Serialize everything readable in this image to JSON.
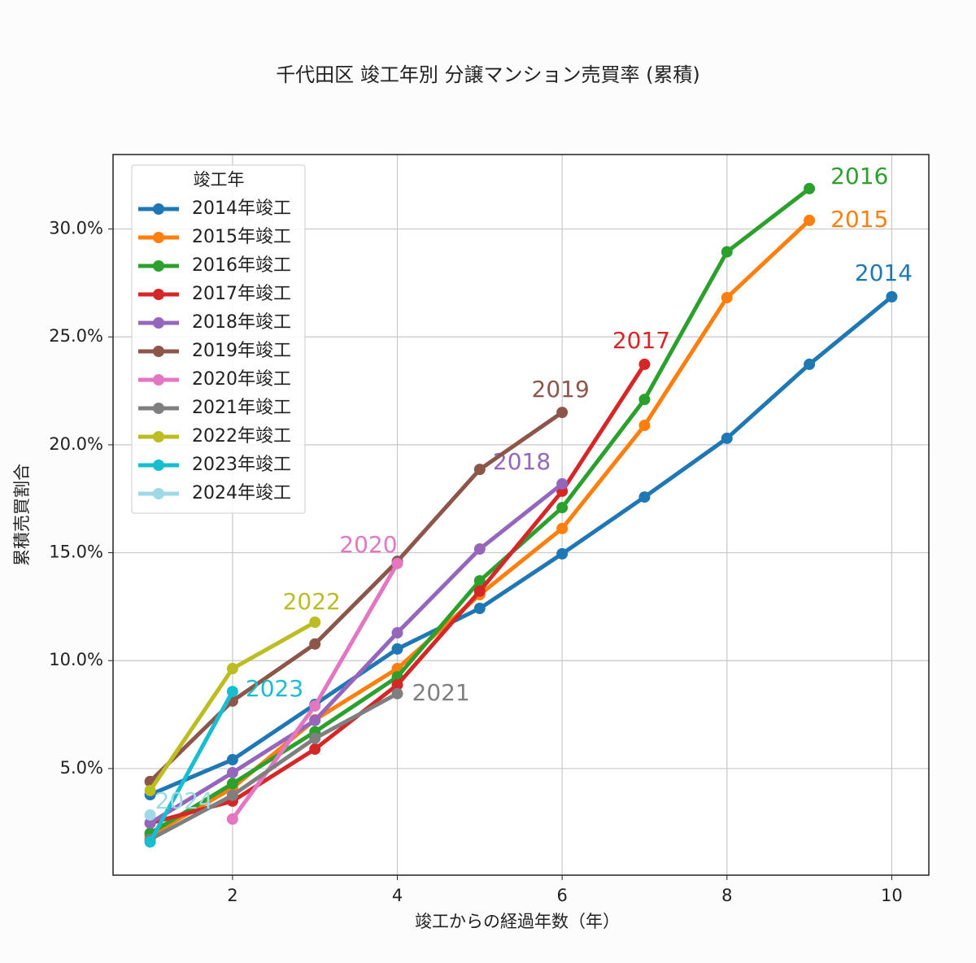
{
  "chart_data": {
    "type": "line",
    "title": "千代田区 竣工年別 分譲マンション売買率 (累積)",
    "x_label": "竣工からの経過年数（年）",
    "y_label": "累積売買割合",
    "legend_title": "竣工年",
    "legend_position": "upper left",
    "grid": true,
    "x": [
      1,
      2,
      3,
      4,
      5,
      6,
      7,
      8,
      9,
      10
    ],
    "xlim": [
      0.55,
      10.45
    ],
    "xticks": [
      2,
      4,
      6,
      8,
      10
    ],
    "ylim": [
      0.06,
      33.45
    ],
    "yticks": [
      {
        "value": 5,
        "label": "5.0%"
      },
      {
        "value": 10,
        "label": "10.0%"
      },
      {
        "value": 15,
        "label": "15.0%"
      },
      {
        "value": 20,
        "label": "20.0%"
      },
      {
        "value": 25,
        "label": "25.0%"
      },
      {
        "value": 30,
        "label": "30.0%"
      }
    ],
    "series": [
      {
        "name": "2014年竣工",
        "end_label": "2014",
        "color": "#1f77b4",
        "values": [
          3.79,
          5.41,
          7.97,
          10.54,
          12.42,
          14.95,
          17.58,
          20.3,
          23.73,
          26.86
        ]
      },
      {
        "name": "2015年竣工",
        "end_label": "2015",
        "color": "#ff7f0e",
        "values": [
          1.9,
          4.1,
          7.26,
          9.63,
          13.06,
          16.12,
          20.9,
          26.82,
          30.4,
          null
        ]
      },
      {
        "name": "2016年竣工",
        "end_label": "2016",
        "color": "#2ca02c",
        "values": [
          2.0,
          4.3,
          6.7,
          9.25,
          13.7,
          17.09,
          22.1,
          28.94,
          31.87,
          null
        ]
      },
      {
        "name": "2017年竣工",
        "end_label": "2017",
        "color": "#d62728",
        "values": [
          2.47,
          3.49,
          5.9,
          8.88,
          13.22,
          17.85,
          23.73,
          null,
          null,
          null
        ]
      },
      {
        "name": "2018年竣工",
        "end_label": "2018",
        "color": "#9467bd",
        "values": [
          2.47,
          4.81,
          7.23,
          11.29,
          15.17,
          18.19,
          null,
          null,
          null,
          null
        ]
      },
      {
        "name": "2019年竣工",
        "end_label": "2019",
        "color": "#8c564b",
        "values": [
          4.4,
          8.13,
          10.77,
          14.6,
          18.86,
          21.5,
          null,
          null,
          null,
          null
        ]
      },
      {
        "name": "2020年竣工",
        "end_label": "2020",
        "color": "#e377c2",
        "values": [
          null,
          2.66,
          7.9,
          14.5,
          null,
          null,
          null,
          null,
          null,
          null
        ]
      },
      {
        "name": "2021年竣工",
        "end_label": "2021",
        "color": "#7f7f7f",
        "values": [
          1.72,
          3.76,
          6.4,
          8.47,
          null,
          null,
          null,
          null,
          null,
          null
        ]
      },
      {
        "name": "2022年竣工",
        "end_label": "2022",
        "color": "#bcbd22",
        "values": [
          3.98,
          9.63,
          11.78,
          null,
          null,
          null,
          null,
          null,
          null,
          null
        ]
      },
      {
        "name": "2023年竣工",
        "end_label": "2023",
        "color": "#17becf",
        "values": [
          1.6,
          8.57,
          null,
          null,
          null,
          null,
          null,
          null,
          null,
          null
        ]
      },
      {
        "name": "2024年竣工",
        "end_label": "2024",
        "color": "#9edae5",
        "values": [
          2.85,
          null,
          null,
          null,
          null,
          null,
          null,
          null,
          null,
          null
        ]
      }
    ]
  }
}
